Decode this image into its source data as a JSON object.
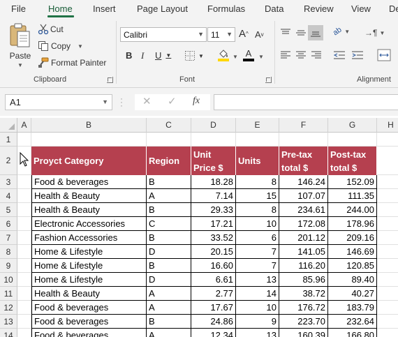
{
  "tabs": [
    "File",
    "Home",
    "Insert",
    "Page Layout",
    "Formulas",
    "Data",
    "Review",
    "View",
    "De"
  ],
  "active_tab": "Home",
  "clipboard": {
    "paste": "Paste",
    "cut": "Cut",
    "copy": "Copy",
    "format_painter": "Format Painter",
    "label": "Clipboard"
  },
  "font": {
    "name": "Calibri",
    "size": "11",
    "label": "Font"
  },
  "alignment": {
    "label": "Alignment"
  },
  "formula_bar": {
    "cell_ref": "A1",
    "fx": "fx",
    "formula": ""
  },
  "colors": {
    "accent": "#217346",
    "header_fill": "#b5404f",
    "font_highlight": "#ffd700",
    "font_color": "#000000"
  },
  "columns": [
    "A",
    "B",
    "C",
    "D",
    "E",
    "F",
    "G",
    "H"
  ],
  "rows": [
    "1",
    "2",
    "3",
    "4",
    "5",
    "6",
    "7",
    "8",
    "9",
    "10",
    "11",
    "12",
    "13",
    "14"
  ],
  "table": {
    "headers": [
      [
        "Proуct Category"
      ],
      [
        "Region"
      ],
      [
        "Unit",
        "Price $"
      ],
      [
        "Units"
      ],
      [
        "Pre-tax",
        "total $"
      ],
      [
        "Post-tax",
        "total $"
      ]
    ],
    "rows": [
      [
        "Food & beverages",
        "B",
        "18.28",
        "8",
        "146.24",
        "152.09"
      ],
      [
        "Health & Beauty",
        "A",
        "7.14",
        "15",
        "107.07",
        "111.35"
      ],
      [
        "Health & Beauty",
        "B",
        "29.33",
        "8",
        "234.61",
        "244.00"
      ],
      [
        "Electronic Accessories",
        "C",
        "17.21",
        "10",
        "172.08",
        "178.96"
      ],
      [
        "Fashion Accessories",
        "B",
        "33.52",
        "6",
        "201.12",
        "209.16"
      ],
      [
        "Home & Lifestyle",
        "D",
        "20.15",
        "7",
        "141.05",
        "146.69"
      ],
      [
        "Home & Lifestyle",
        "B",
        "16.60",
        "7",
        "116.20",
        "120.85"
      ],
      [
        "Home & Lifestyle",
        "D",
        "6.61",
        "13",
        "85.96",
        "89.40"
      ],
      [
        "Health & Beauty",
        "A",
        "2.77",
        "14",
        "38.72",
        "40.27"
      ],
      [
        "Food & beverages",
        "A",
        "17.67",
        "10",
        "176.72",
        "183.79"
      ],
      [
        "Food & beverages",
        "B",
        "24.86",
        "9",
        "223.70",
        "232.64"
      ],
      [
        "Food & beverages",
        "A",
        "12.34",
        "13",
        "160.39",
        "166.80"
      ]
    ]
  }
}
